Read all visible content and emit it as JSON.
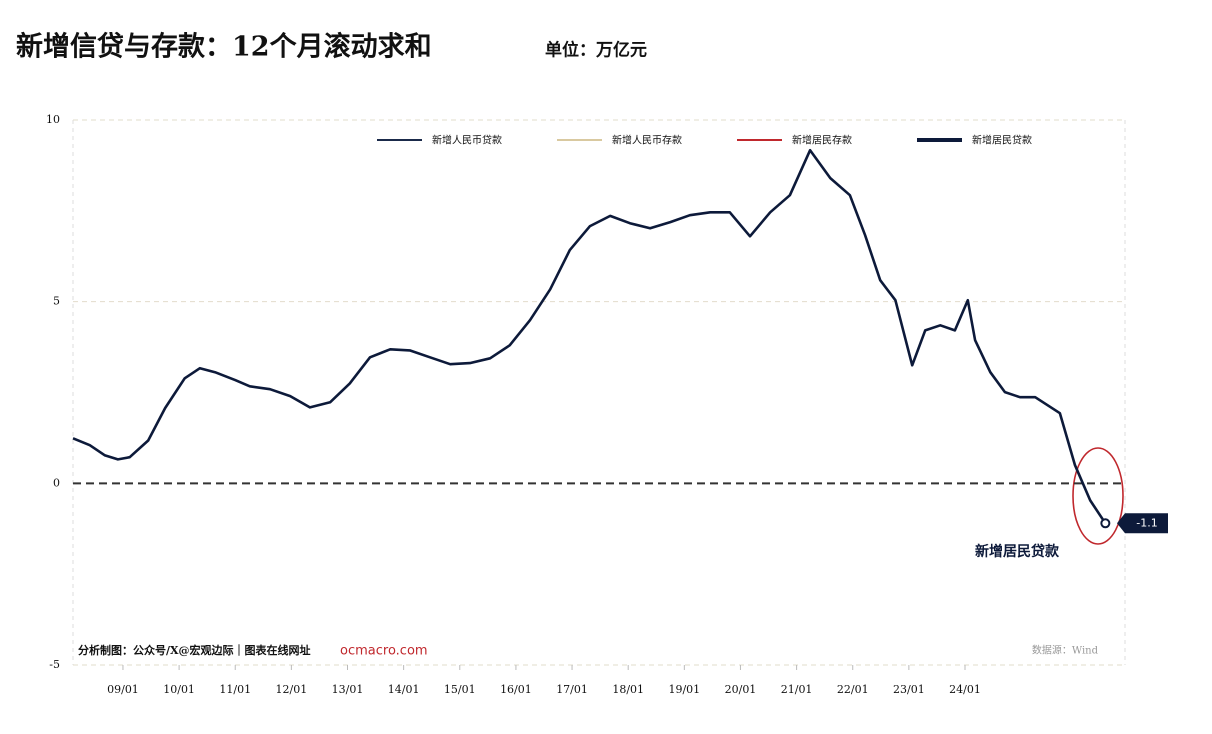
{
  "title": "新增信贷与存款：12个月滚动求和",
  "unit": "单位：万亿元",
  "footer": {
    "credit": "分析制图：公众号/X@宏观边际｜图表在线网址",
    "site": "ocmacro.com",
    "source": "数据源：Wind"
  },
  "chart_data": {
    "type": "line",
    "legend_entries": [
      {
        "name": "新增人民币贷款",
        "color": "#1a2a4a"
      },
      {
        "name": "新增人民币存款",
        "color": "#d9c9a0"
      },
      {
        "name": "新增居民存款",
        "color": "#c0282d"
      },
      {
        "name": "新增居民贷款",
        "color": "#0d1a3a"
      }
    ],
    "x": [
      2008.11,
      2008.41,
      2008.68,
      2008.91,
      2009.12,
      2009.45,
      2009.75,
      2010.1,
      2010.37,
      2010.64,
      2011.0,
      2011.26,
      2011.62,
      2011.98,
      2012.33,
      2012.69,
      2013.04,
      2013.4,
      2013.76,
      2014.11,
      2014.47,
      2014.83,
      2015.18,
      2015.54,
      2015.89,
      2016.25,
      2016.61,
      2016.96,
      2017.32,
      2017.68,
      2018.03,
      2018.39,
      2018.75,
      2019.1,
      2019.46,
      2019.81,
      2020.17,
      2020.53,
      2020.88,
      2021.24,
      2021.6,
      2021.95,
      2022.22,
      2022.49,
      2022.76,
      2023.06,
      2023.29,
      2023.56,
      2023.82,
      2024.05,
      2024.18,
      2024.45,
      2024.71,
      2024.98,
      2025.25,
      2025.69,
      2025.96,
      2026.23,
      2026.5
    ],
    "series": [
      {
        "name": "新增居民贷款",
        "color": "#0d1a3a",
        "values": [
          1.24,
          1.05,
          0.77,
          0.66,
          0.72,
          1.18,
          2.07,
          2.89,
          3.17,
          3.06,
          2.84,
          2.67,
          2.59,
          2.4,
          2.09,
          2.23,
          2.75,
          3.47,
          3.69,
          3.66,
          3.47,
          3.28,
          3.31,
          3.44,
          3.8,
          4.49,
          5.34,
          6.42,
          7.08,
          7.36,
          7.16,
          7.02,
          7.19,
          7.38,
          7.46,
          7.46,
          6.8,
          7.46,
          7.93,
          9.17,
          8.4,
          7.93,
          6.83,
          5.59,
          5.04,
          3.25,
          4.21,
          4.35,
          4.21,
          5.04,
          3.94,
          3.06,
          2.51,
          2.37,
          2.37,
          1.93,
          0.5,
          -0.47,
          -1.1
        ]
      }
    ],
    "end_value": -1.1,
    "annotation": "新增居民贷款",
    "xlim": [
      2008.11,
      2026.85
    ],
    "xticks": [
      {
        "value": 2009,
        "label": "09/01"
      },
      {
        "value": 2010,
        "label": "10/01"
      },
      {
        "value": 2011,
        "label": "11/01"
      },
      {
        "value": 2012,
        "label": "12/01"
      },
      {
        "value": 2013,
        "label": "13/01"
      },
      {
        "value": 2014,
        "label": "14/01"
      },
      {
        "value": 2015,
        "label": "15/01"
      },
      {
        "value": 2016,
        "label": "16/01"
      },
      {
        "value": 2017,
        "label": "17/01"
      },
      {
        "value": 2018,
        "label": "18/01"
      },
      {
        "value": 2019,
        "label": "19/01"
      },
      {
        "value": 2020,
        "label": "20/01"
      },
      {
        "value": 2021,
        "label": "21/01"
      },
      {
        "value": 2022,
        "label": "22/01"
      },
      {
        "value": 2023,
        "label": "23/01"
      },
      {
        "value": 2024,
        "label": "24/01"
      }
    ],
    "ylim": [
      -5,
      10
    ],
    "yticks": [
      -5,
      0,
      5,
      10
    ],
    "grid": true
  }
}
